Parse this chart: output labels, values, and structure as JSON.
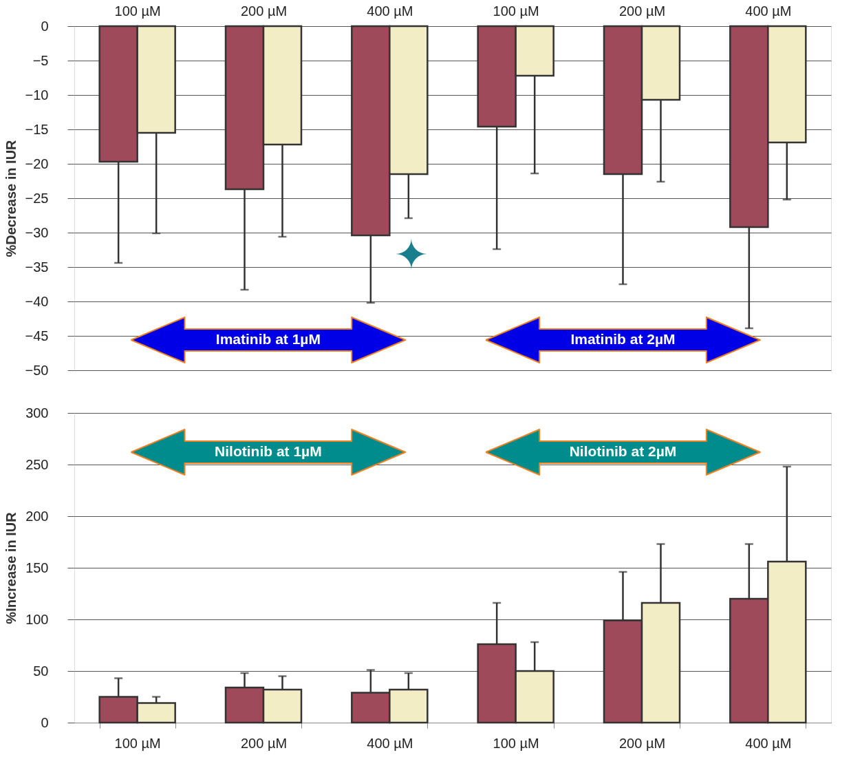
{
  "chart_data": [
    {
      "type": "bar",
      "ylabel": "%Decrease in IUR",
      "categories": [
        "100 µM",
        "200 µM",
        "400 µM",
        "100 µM",
        "200 µM",
        "400 µM"
      ],
      "ylim": [
        -50,
        0
      ],
      "yticks": [
        -50,
        -45,
        -40,
        -35,
        -30,
        -25,
        -20,
        -15,
        -10,
        -5,
        0
      ],
      "grid": "y",
      "series": [
        {
          "color": "#9e4a5a",
          "values": [
            -19.7,
            -23.7,
            -30.4,
            -14.6,
            -21.5,
            -29.2
          ],
          "errors": [
            [
              -34.4,
              -19.7
            ],
            [
              -38.3,
              -23.7
            ],
            [
              -40.2,
              -30.4
            ],
            [
              -32.4,
              -14.6
            ],
            [
              -37.5,
              -21.5
            ],
            [
              -43.9,
              -29.2
            ]
          ]
        },
        {
          "color": "#f3edc6",
          "values": [
            -15.5,
            -17.2,
            -21.5,
            -7.2,
            -10.7,
            -16.9
          ],
          "errors": [
            [
              -30.1,
              -15.5
            ],
            [
              -30.6,
              -17.2
            ],
            [
              -27.9,
              -21.5
            ],
            [
              -21.4,
              -7.2
            ],
            [
              -22.6,
              -10.7
            ],
            [
              -25.2,
              -16.9
            ]
          ]
        }
      ],
      "annotations": [
        "Imatinib at 1µM",
        "Imatinib at 2µM",
        "✦"
      ]
    },
    {
      "type": "bar",
      "ylabel": "%Increase in IUR",
      "categories": [
        "100 µM",
        "200 µM",
        "400 µM",
        "100 µM",
        "200 µM",
        "400 µM"
      ],
      "ylim": [
        0,
        300
      ],
      "yticks": [
        0,
        50,
        100,
        150,
        200,
        250,
        300
      ],
      "grid": "y",
      "series": [
        {
          "color": "#9e4a5a",
          "values": [
            25,
            34,
            29,
            76,
            99,
            120
          ],
          "errors": [
            [
              25,
              43
            ],
            [
              34,
              48
            ],
            [
              29,
              51
            ],
            [
              76,
              116
            ],
            [
              99,
              146
            ],
            [
              120,
              173
            ]
          ]
        },
        {
          "color": "#f3edc6",
          "values": [
            19,
            32,
            32,
            50,
            116,
            156
          ],
          "errors": [
            [
              19,
              25
            ],
            [
              32,
              45
            ],
            [
              32,
              48
            ],
            [
              50,
              78
            ],
            [
              116,
              173
            ],
            [
              156,
              248
            ]
          ]
        }
      ],
      "annotations": [
        "Nilotinib at 1µM",
        "Nilotinib at 2µM"
      ]
    }
  ]
}
